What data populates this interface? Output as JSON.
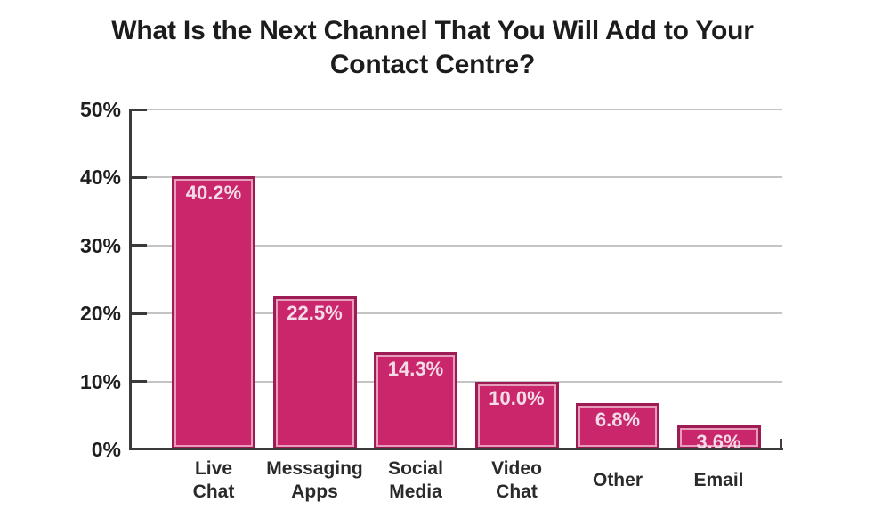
{
  "chart_data": {
    "type": "bar",
    "title": "What Is the Next Channel That You Will Add to Your Contact Centre?",
    "categories": [
      "Live Chat",
      "Messaging Apps",
      "Social Media",
      "Video Chat",
      "Other",
      "Email"
    ],
    "values": [
      40.2,
      22.5,
      14.3,
      10.0,
      6.8,
      3.6
    ],
    "data_labels": [
      "40.2%",
      "22.5%",
      "14.3%",
      "10.0%",
      "6.8%",
      "3.6%"
    ],
    "xlabel": "",
    "ylabel": "",
    "ylim": [
      0,
      50
    ],
    "y_ticks": [
      0,
      10,
      20,
      30,
      40,
      50
    ],
    "y_tick_labels": [
      "0%",
      "10%",
      "20%",
      "30%",
      "40%",
      "50%"
    ],
    "grid": "horizontal-only",
    "legend": "none",
    "colors": {
      "bar_fill": "#c9266b",
      "bar_border": "#9e1b53",
      "bar_inner_highlight": "#ffffff",
      "value_label_text": "#f3dce7",
      "axis": "#3a3a3a",
      "gridline": "#c4c4c4",
      "text": "#1c1c1c",
      "background": "#ffffff"
    }
  }
}
